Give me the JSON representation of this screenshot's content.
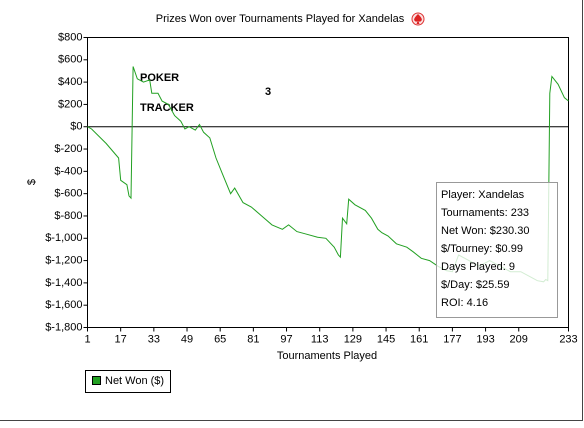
{
  "chart_data": {
    "type": "line",
    "title": "Prizes Won over Tournaments Played for Xandelas",
    "watermark": [
      "POKER",
      "TRACKER",
      "3"
    ],
    "x_label": "Tournaments Played",
    "y_label": "$",
    "xlim": [
      1,
      233
    ],
    "xticks": [
      1,
      17,
      33,
      49,
      65,
      81,
      97,
      113,
      129,
      145,
      161,
      177,
      193,
      209,
      233
    ],
    "ylim": [
      -1800,
      800
    ],
    "yticks": [
      {
        "value": 800,
        "label": "$800"
      },
      {
        "value": 600,
        "label": "$600"
      },
      {
        "value": 400,
        "label": "$400"
      },
      {
        "value": 200,
        "label": "$200"
      },
      {
        "value": 0,
        "label": "$0"
      },
      {
        "value": -200,
        "label": "$-200"
      },
      {
        "value": -400,
        "label": "$-400"
      },
      {
        "value": -600,
        "label": "$-600"
      },
      {
        "value": -800,
        "label": "$-800"
      },
      {
        "value": -1000,
        "label": "$-1,000"
      },
      {
        "value": -1200,
        "label": "$-1,200"
      },
      {
        "value": -1400,
        "label": "$-1,400"
      },
      {
        "value": -1600,
        "label": "$-1,600"
      },
      {
        "value": -1800,
        "label": "$-1,800"
      }
    ],
    "grid": false,
    "zero_line": true,
    "x": [
      1,
      3,
      10,
      16,
      17,
      20,
      21,
      22,
      23,
      25,
      28,
      31,
      32,
      35,
      37,
      40,
      43,
      46,
      48,
      50,
      53,
      55,
      57,
      60,
      63,
      66,
      70,
      72,
      76,
      80,
      85,
      90,
      95,
      98,
      102,
      106,
      112,
      116,
      120,
      122,
      123,
      124,
      126,
      127,
      130,
      135,
      138,
      141,
      143,
      146,
      150,
      155,
      158,
      162,
      166,
      170,
      174,
      177,
      180,
      185,
      190,
      195,
      200,
      205,
      210,
      215,
      218,
      221,
      222,
      223,
      224,
      225,
      228,
      231,
      233
    ],
    "series": [
      {
        "name": "Net Won ($)",
        "color": "#22a022",
        "values": [
          0,
          -20,
          -150,
          -280,
          -480,
          -520,
          -620,
          -640,
          540,
          430,
          400,
          420,
          300,
          300,
          230,
          200,
          100,
          50,
          -20,
          0,
          -30,
          20,
          -50,
          -100,
          -280,
          -420,
          -600,
          -550,
          -680,
          -720,
          -800,
          -880,
          -920,
          -880,
          -940,
          -960,
          -990,
          -1000,
          -1080,
          -1150,
          -1170,
          -820,
          -870,
          -650,
          -700,
          -750,
          -820,
          -920,
          -950,
          -980,
          -1050,
          -1080,
          -1120,
          -1180,
          -1200,
          -1250,
          -1290,
          -1300,
          -1150,
          -1200,
          -1250,
          -1200,
          -1250,
          -1300,
          -1300,
          -1350,
          -1380,
          -1390,
          -1370,
          -1380,
          300,
          450,
          380,
          260,
          230.3
        ]
      }
    ],
    "info_box": [
      "Player: Xandelas",
      "Tournaments: 233",
      "Net Won: $230.30",
      "$/Tourney: $0.99",
      "Days Played: 9",
      "$/Day: $25.59",
      "ROI: 4.16"
    ]
  }
}
